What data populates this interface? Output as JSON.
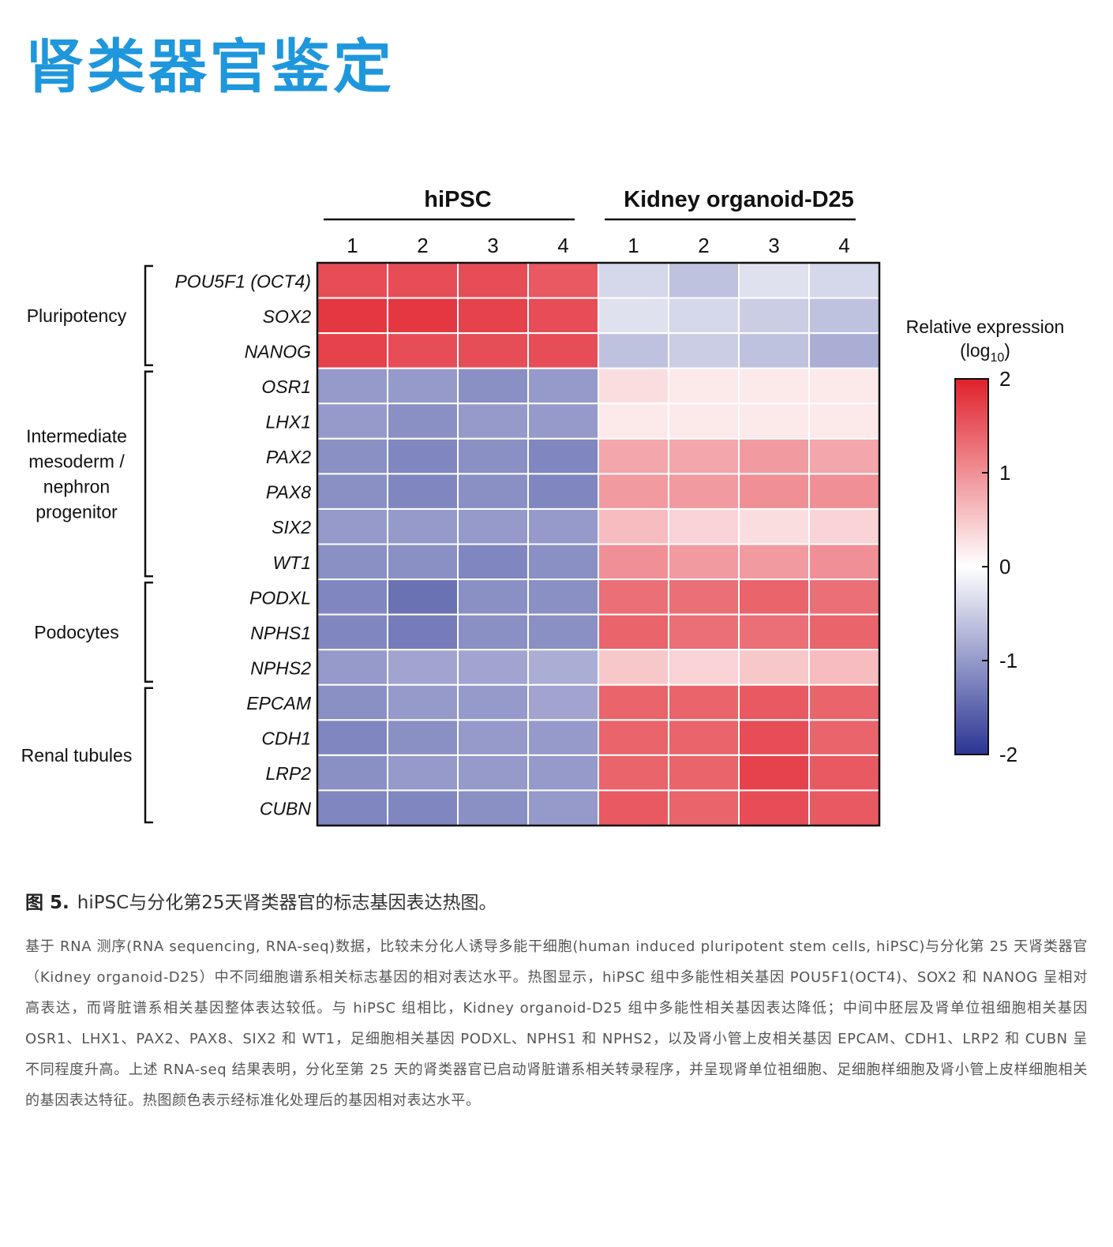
{
  "page": {
    "title": "肾类器官鉴定"
  },
  "caption": {
    "figure_label": "图 5.",
    "title": "hiPSC与分化第25天肾类器官的标志基因表达热图。",
    "body": "基于 RNA 测序(RNA sequencing, RNA-seq)数据，比较未分化人诱导多能干细胞(human induced pluripotent stem cells, hiPSC)与分化第 25 天肾类器官（Kidney organoid-D25）中不同细胞谱系相关标志基因的相对表达水平。热图显示，hiPSC 组中多能性相关基因 POU5F1(OCT4)、SOX2 和 NANOG 呈相对高表达，而肾脏谱系相关基因整体表达较低。与 hiPSC 组相比，Kidney organoid-D25 组中多能性相关基因表达降低；中间中胚层及肾单位祖细胞相关基因 OSR1、LHX1、PAX2、PAX8、SIX2 和 WT1，足细胞相关基因 PODXL、NPHS1 和 NPHS2，以及肾小管上皮相关基因 EPCAM、CDH1、LRP2 和 CUBN 呈不同程度升高。上述 RNA-seq 结果表明，分化至第 25 天的肾类器官已启动肾脏谱系相关转录程序，并呈现肾单位祖细胞、足细胞样细胞及肾小管上皮样细胞相关的基因表达特征。热图颜色表示经标准化处理后的基因相对表达水平。"
  },
  "chart_data": {
    "type": "heatmap",
    "groups": [
      {
        "name": "hiPSC",
        "columns": [
          "1",
          "2",
          "3",
          "4"
        ]
      },
      {
        "name": "Kidney organoid-D25",
        "columns": [
          "1",
          "2",
          "3",
          "4"
        ]
      }
    ],
    "rows": [
      "POU5F1 (OCT4)",
      "SOX2",
      "NANOG",
      "OSR1",
      "LHX1",
      "PAX2",
      "PAX8",
      "SIX2",
      "WT1",
      "PODXL",
      "NPHS1",
      "NPHS2",
      "EPCAM",
      "CDH1",
      "LRP2",
      "CUBN"
    ],
    "row_groups": [
      {
        "name": "Pluripotency",
        "lines": [
          "Pluripotency"
        ],
        "start": 0,
        "end": 2
      },
      {
        "name": "Intermediate mesoderm / nephron progenitor",
        "lines": [
          "Intermediate",
          "mesoderm /",
          "nephron",
          "progenitor"
        ],
        "start": 3,
        "end": 8
      },
      {
        "name": "Podocytes",
        "lines": [
          "Podocytes"
        ],
        "start": 9,
        "end": 11
      },
      {
        "name": "Renal tubules",
        "lines": [
          "Renal tubules"
        ],
        "start": 12,
        "end": 15
      }
    ],
    "values": [
      [
        1.6,
        1.6,
        1.6,
        1.5,
        -0.4,
        -0.6,
        -0.3,
        -0.4
      ],
      [
        1.8,
        1.8,
        1.7,
        1.6,
        -0.3,
        -0.4,
        -0.5,
        -0.6
      ],
      [
        1.7,
        1.6,
        1.6,
        1.6,
        -0.6,
        -0.5,
        -0.6,
        -0.8
      ],
      [
        -1.0,
        -1.0,
        -1.1,
        -1.0,
        0.3,
        0.2,
        0.2,
        0.2
      ],
      [
        -1.0,
        -1.1,
        -1.0,
        -1.0,
        0.2,
        0.2,
        0.2,
        0.2
      ],
      [
        -1.1,
        -1.2,
        -1.1,
        -1.2,
        0.8,
        0.8,
        0.9,
        0.8
      ],
      [
        -1.1,
        -1.2,
        -1.1,
        -1.2,
        0.9,
        0.9,
        1.0,
        1.0
      ],
      [
        -1.0,
        -1.0,
        -1.0,
        -1.0,
        0.6,
        0.4,
        0.3,
        0.4
      ],
      [
        -1.1,
        -1.1,
        -1.2,
        -1.1,
        1.0,
        0.9,
        0.9,
        1.0
      ],
      [
        -1.2,
        -1.4,
        -1.1,
        -1.1,
        1.3,
        1.3,
        1.4,
        1.3
      ],
      [
        -1.2,
        -1.3,
        -1.1,
        -1.1,
        1.4,
        1.3,
        1.3,
        1.4
      ],
      [
        -1.0,
        -0.9,
        -0.9,
        -0.8,
        0.5,
        0.4,
        0.5,
        0.6
      ],
      [
        -1.1,
        -1.0,
        -1.0,
        -0.9,
        1.4,
        1.4,
        1.5,
        1.4
      ],
      [
        -1.2,
        -1.1,
        -1.0,
        -1.0,
        1.4,
        1.4,
        1.6,
        1.4
      ],
      [
        -1.1,
        -1.0,
        -1.0,
        -1.0,
        1.4,
        1.4,
        1.7,
        1.5
      ],
      [
        -1.2,
        -1.2,
        -1.1,
        -1.0,
        1.5,
        1.4,
        1.6,
        1.5
      ]
    ],
    "colorbar": {
      "title": "Relative expression",
      "title_unit": "(log",
      "title_subscript": "10",
      "title_unit_close": ")",
      "min": -2,
      "max": 2,
      "ticks": [
        "2",
        "1",
        "0",
        "-1",
        "-2"
      ],
      "colors": {
        "low": "#2b3594",
        "mid": "#ffffff",
        "high": "#e0212c"
      }
    }
  }
}
